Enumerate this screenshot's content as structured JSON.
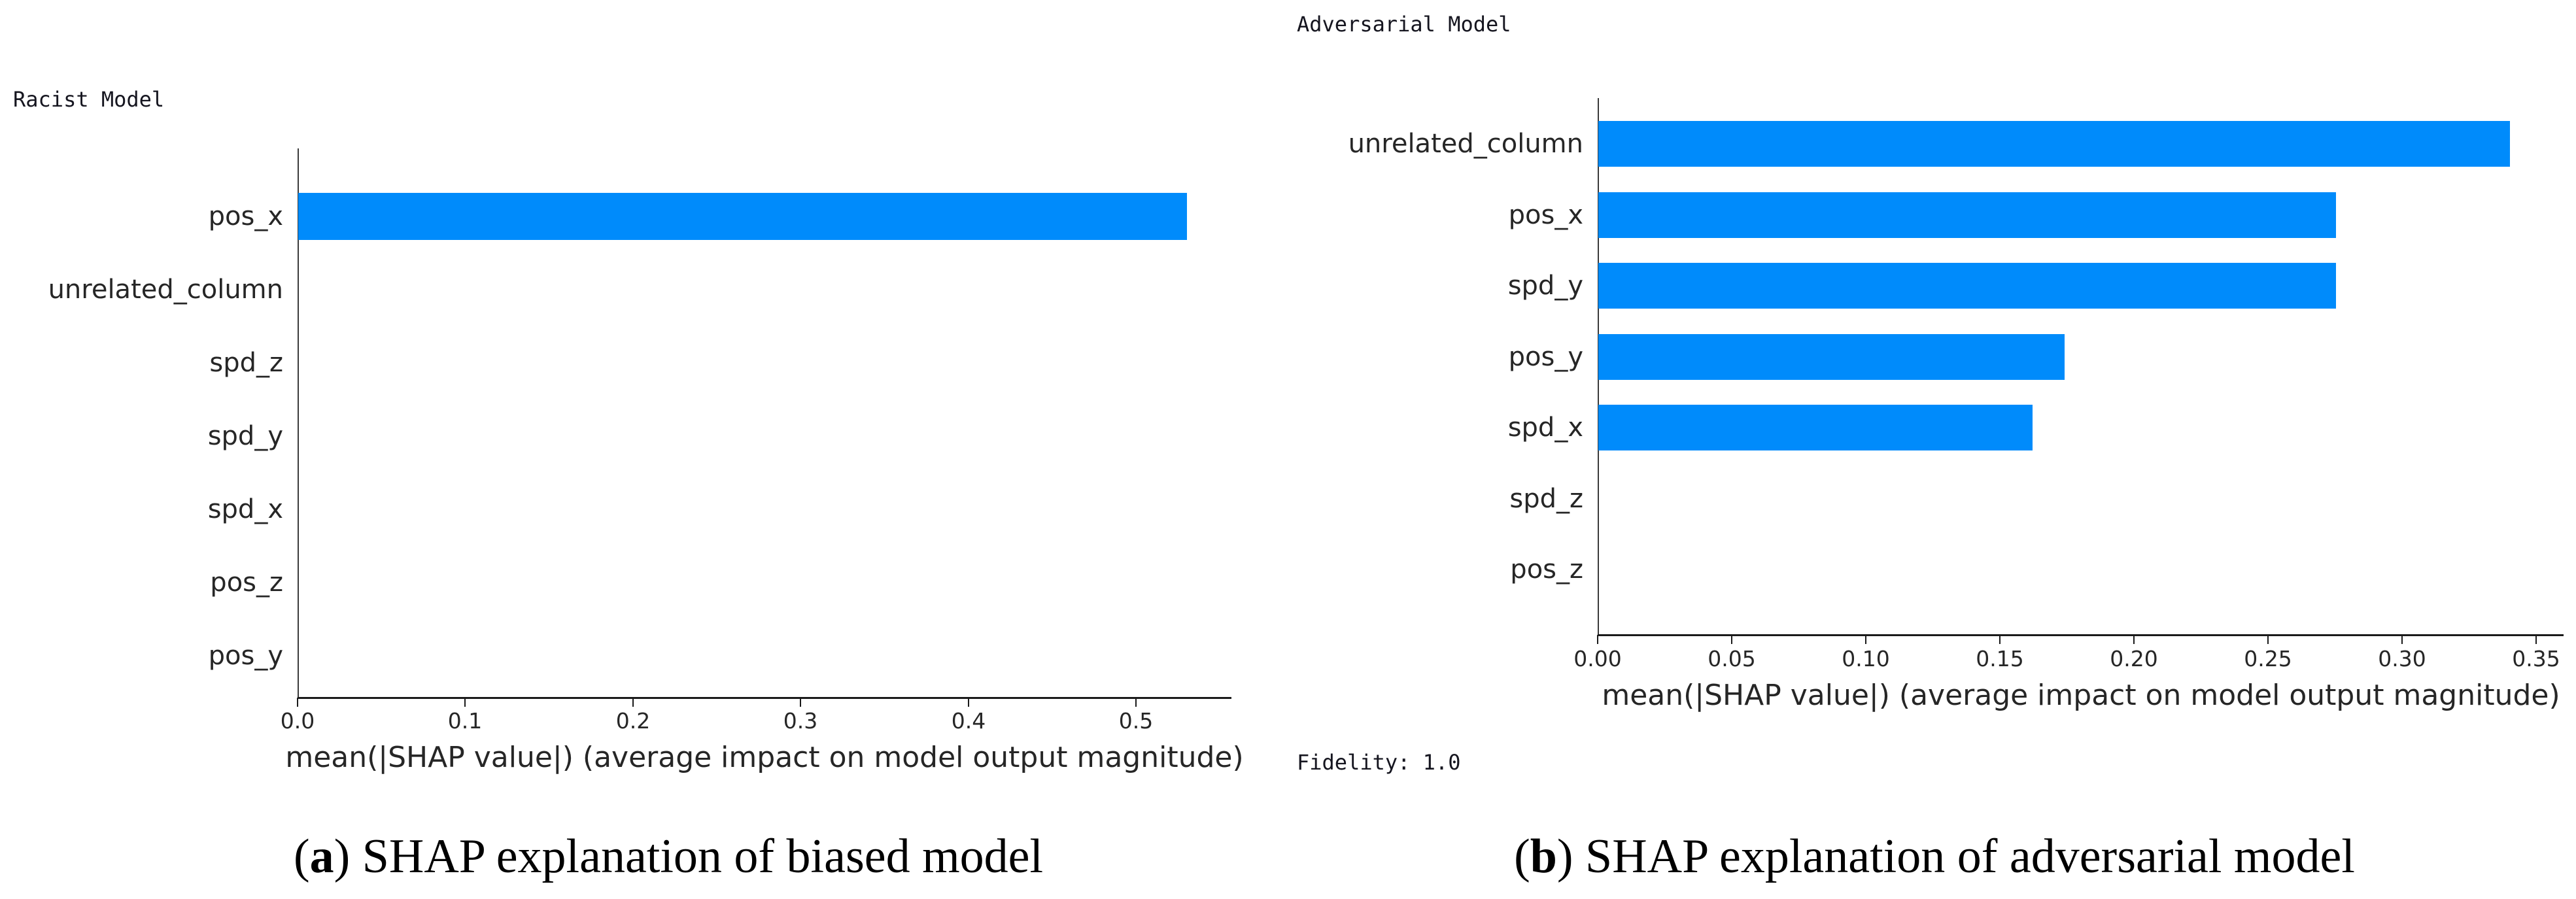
{
  "chart_data": [
    {
      "type": "bar",
      "orientation": "horizontal",
      "title": "Racist Model",
      "categories": [
        "pos_x",
        "unrelated_column",
        "spd_z",
        "spd_y",
        "spd_x",
        "pos_z",
        "pos_y"
      ],
      "values": [
        0.53,
        0,
        0,
        0,
        0,
        0,
        0
      ],
      "xlabel": "mean(|SHAP value|) (average impact on model output magnitude)",
      "ylabel": "",
      "xtick_labels": [
        "0.0",
        "0.1",
        "0.2",
        "0.3",
        "0.4",
        "0.5"
      ],
      "xtick_values": [
        0.0,
        0.1,
        0.2,
        0.3,
        0.4,
        0.5
      ],
      "xlim": [
        0,
        0.557
      ],
      "grid": false,
      "legend": null,
      "bar_color": "#008bfb"
    },
    {
      "type": "bar",
      "orientation": "horizontal",
      "title": "Adversarial Model",
      "categories": [
        "unrelated_column",
        "pos_x",
        "spd_y",
        "pos_y",
        "spd_x",
        "spd_z",
        "pos_z"
      ],
      "values": [
        0.34,
        0.275,
        0.275,
        0.174,
        0.162,
        0,
        0
      ],
      "xlabel": "mean(|SHAP value|) (average impact on model output magnitude)",
      "ylabel": "",
      "xtick_labels": [
        "0.00",
        "0.05",
        "0.10",
        "0.15",
        "0.20",
        "0.25",
        "0.30",
        "0.35"
      ],
      "xtick_values": [
        0.0,
        0.05,
        0.1,
        0.15,
        0.2,
        0.25,
        0.3,
        0.35
      ],
      "xlim": [
        0,
        0.36
      ],
      "grid": false,
      "legend": null,
      "bar_color": "#008bfb",
      "footnote": "Fidelity: 1.0"
    }
  ],
  "captions": [
    {
      "tag_open": "(",
      "tag_letter": "a",
      "tag_close": ")",
      "text": " SHAP explanation of biased model"
    },
    {
      "tag_open": "(",
      "tag_letter": "b",
      "tag_close": ")",
      "text": " SHAP explanation of adversarial model"
    }
  ]
}
